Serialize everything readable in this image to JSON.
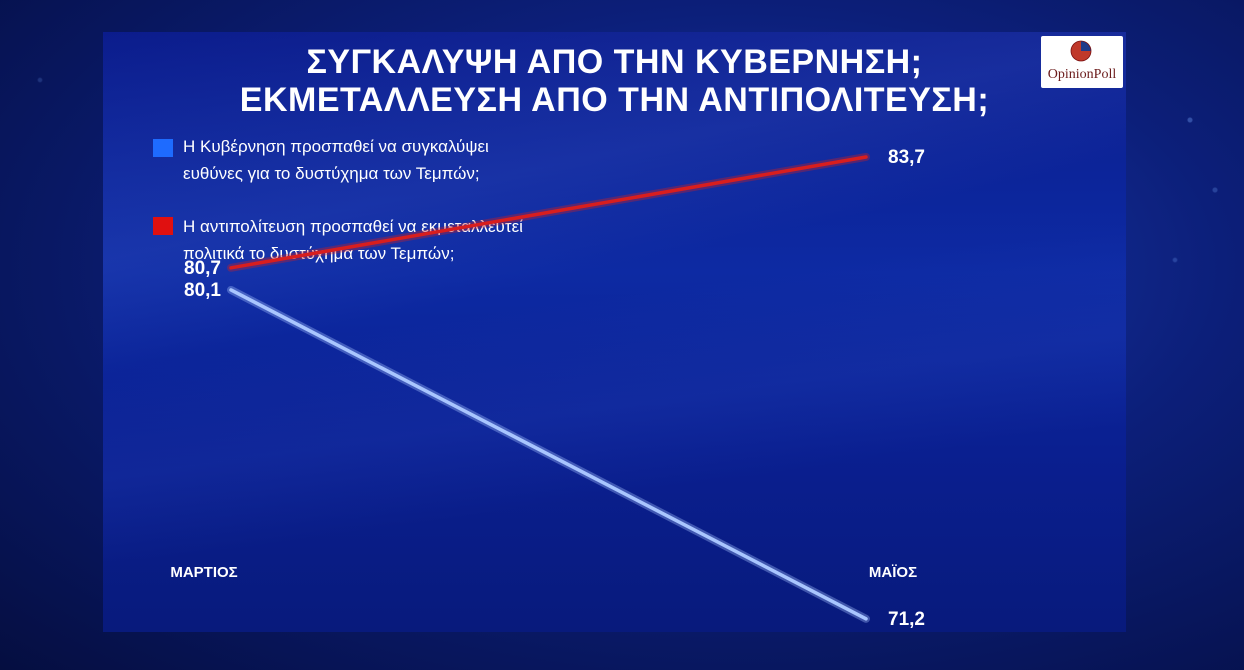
{
  "chart_data": {
    "type": "line",
    "title_lines": [
      "ΣΥΓΚΑΛΥΨΗ ΑΠΟ ΤΗΝ ΚΥΒΕΡΝΗΣΗ;",
      "ΕΚΜΕΤΑΛΛΕΥΣΗ ΑΠΟ ΤΗΝ ΑΝΤΙΠΟΛΙΤΕΥΣΗ;"
    ],
    "categories": [
      "ΜΑΡΤΙΟΣ",
      "ΜΑΪΟΣ"
    ],
    "series": [
      {
        "name_lines": [
          "Η Κυβέρνηση προσπαθεί να συγκαλύψει",
          "ευθύνες για το δυστύχημα των Τεμπών;"
        ],
        "values": [
          80.1,
          71.2
        ],
        "labels": [
          "80,1",
          "71,2"
        ],
        "color": "#a9c6ff",
        "legend_color": "#1e6bff"
      },
      {
        "name_lines": [
          "Η αντιπολίτευση προσπαθεί να εκμεταλλευτεί",
          "πολιτικά το δυστύχημα των Τεμπών;"
        ],
        "values": [
          80.7,
          83.7
        ],
        "labels": [
          "80,7",
          "83,7"
        ],
        "color": "#d81e1e",
        "legend_color": "#e01010"
      }
    ],
    "ylim": [
      68,
      86
    ],
    "grid": false,
    "legend": "top-left"
  },
  "logo": {
    "text": "OpinionPoll",
    "icon": "opinionpoll-logo-icon"
  }
}
